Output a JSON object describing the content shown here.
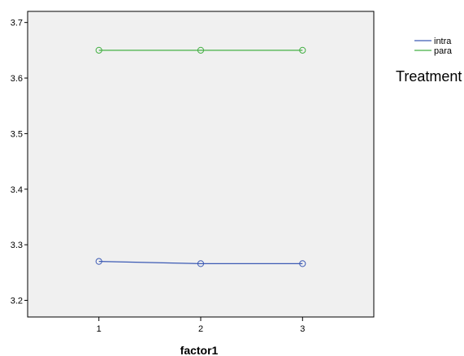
{
  "chart_data": {
    "type": "line",
    "x": [
      1,
      2,
      3
    ],
    "xlabel": "factor1",
    "ylabel": "",
    "title": "",
    "xlim": [
      0.3,
      3.7
    ],
    "ylim": [
      3.17,
      3.72
    ],
    "xticks": [
      1,
      2,
      3
    ],
    "yticks": [
      3.2,
      3.3,
      3.4,
      3.5,
      3.6,
      3.7
    ],
    "grid": false,
    "marker": "circle-open",
    "plot_background": "#f0f0f0",
    "series": [
      {
        "name": "intra",
        "values": [
          3.27,
          3.266,
          3.266
        ],
        "color": "#3c5ab4"
      },
      {
        "name": "para",
        "values": [
          3.65,
          3.65,
          3.65
        ],
        "color": "#44b044"
      }
    ],
    "legend": {
      "title": "Treatment",
      "placement": "right"
    }
  }
}
